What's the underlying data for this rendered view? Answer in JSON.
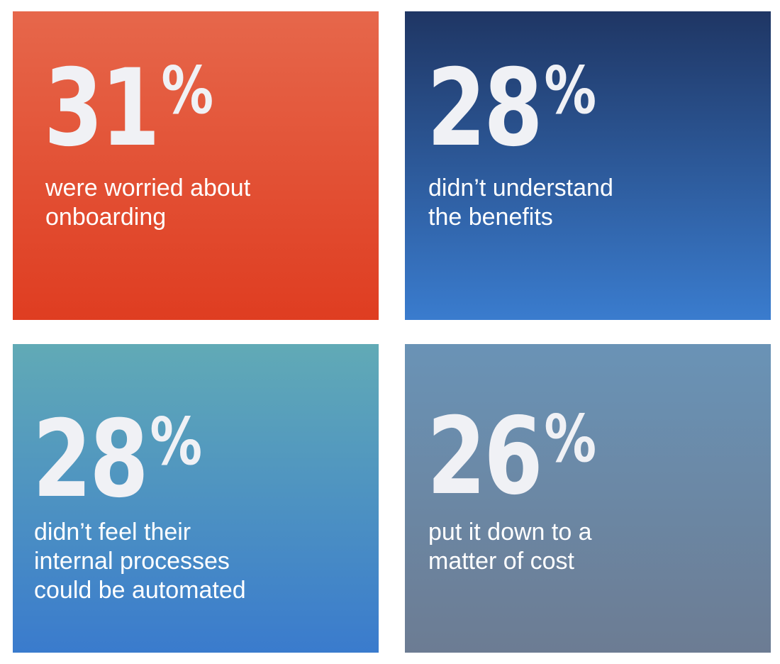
{
  "cards": [
    {
      "value": 31,
      "unit": "%",
      "lines": [
        "were worried about",
        "onboarding"
      ],
      "colors": [
        "#e6674b",
        "#df3d21"
      ]
    },
    {
      "value": 28,
      "unit": "%",
      "lines": [
        "didn’t understand",
        "the benefits"
      ],
      "colors": [
        "#1f3664",
        "#3a7cce"
      ]
    },
    {
      "value": 28,
      "unit": "%",
      "lines": [
        "didn’t feel their",
        "internal processes",
        "could be automated"
      ],
      "colors": [
        "#61aab6",
        "#3a7bcd"
      ]
    },
    {
      "value": 26,
      "unit": "%",
      "lines": [
        "put it down to a",
        "matter of cost"
      ],
      "colors": [
        "#6a93b6",
        "#6c7c93"
      ]
    }
  ]
}
